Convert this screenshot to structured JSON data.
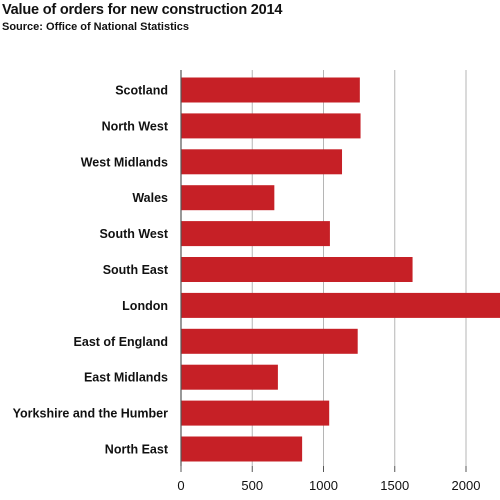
{
  "chart_data": {
    "type": "bar",
    "orientation": "horizontal",
    "title": "Value of orders for new construction 2014",
    "subtitle": "Source: Office of National Statistics",
    "xlabel": "",
    "ylabel": "",
    "categories": [
      "Scotland",
      "North West",
      "West Midlands",
      "Wales",
      "South West",
      "South East",
      "London",
      "East of England",
      "East Midlands",
      "Yorkshire and the Humber",
      "North East"
    ],
    "values": [
      1255,
      1260,
      1130,
      655,
      1045,
      1625,
      2450,
      1240,
      680,
      1040,
      850
    ],
    "xlim": [
      0,
      2200
    ],
    "xticks": [
      0,
      500,
      1000,
      1500,
      2000
    ],
    "grid": "vertical",
    "bar_color": "#c62026",
    "legend": "none"
  }
}
